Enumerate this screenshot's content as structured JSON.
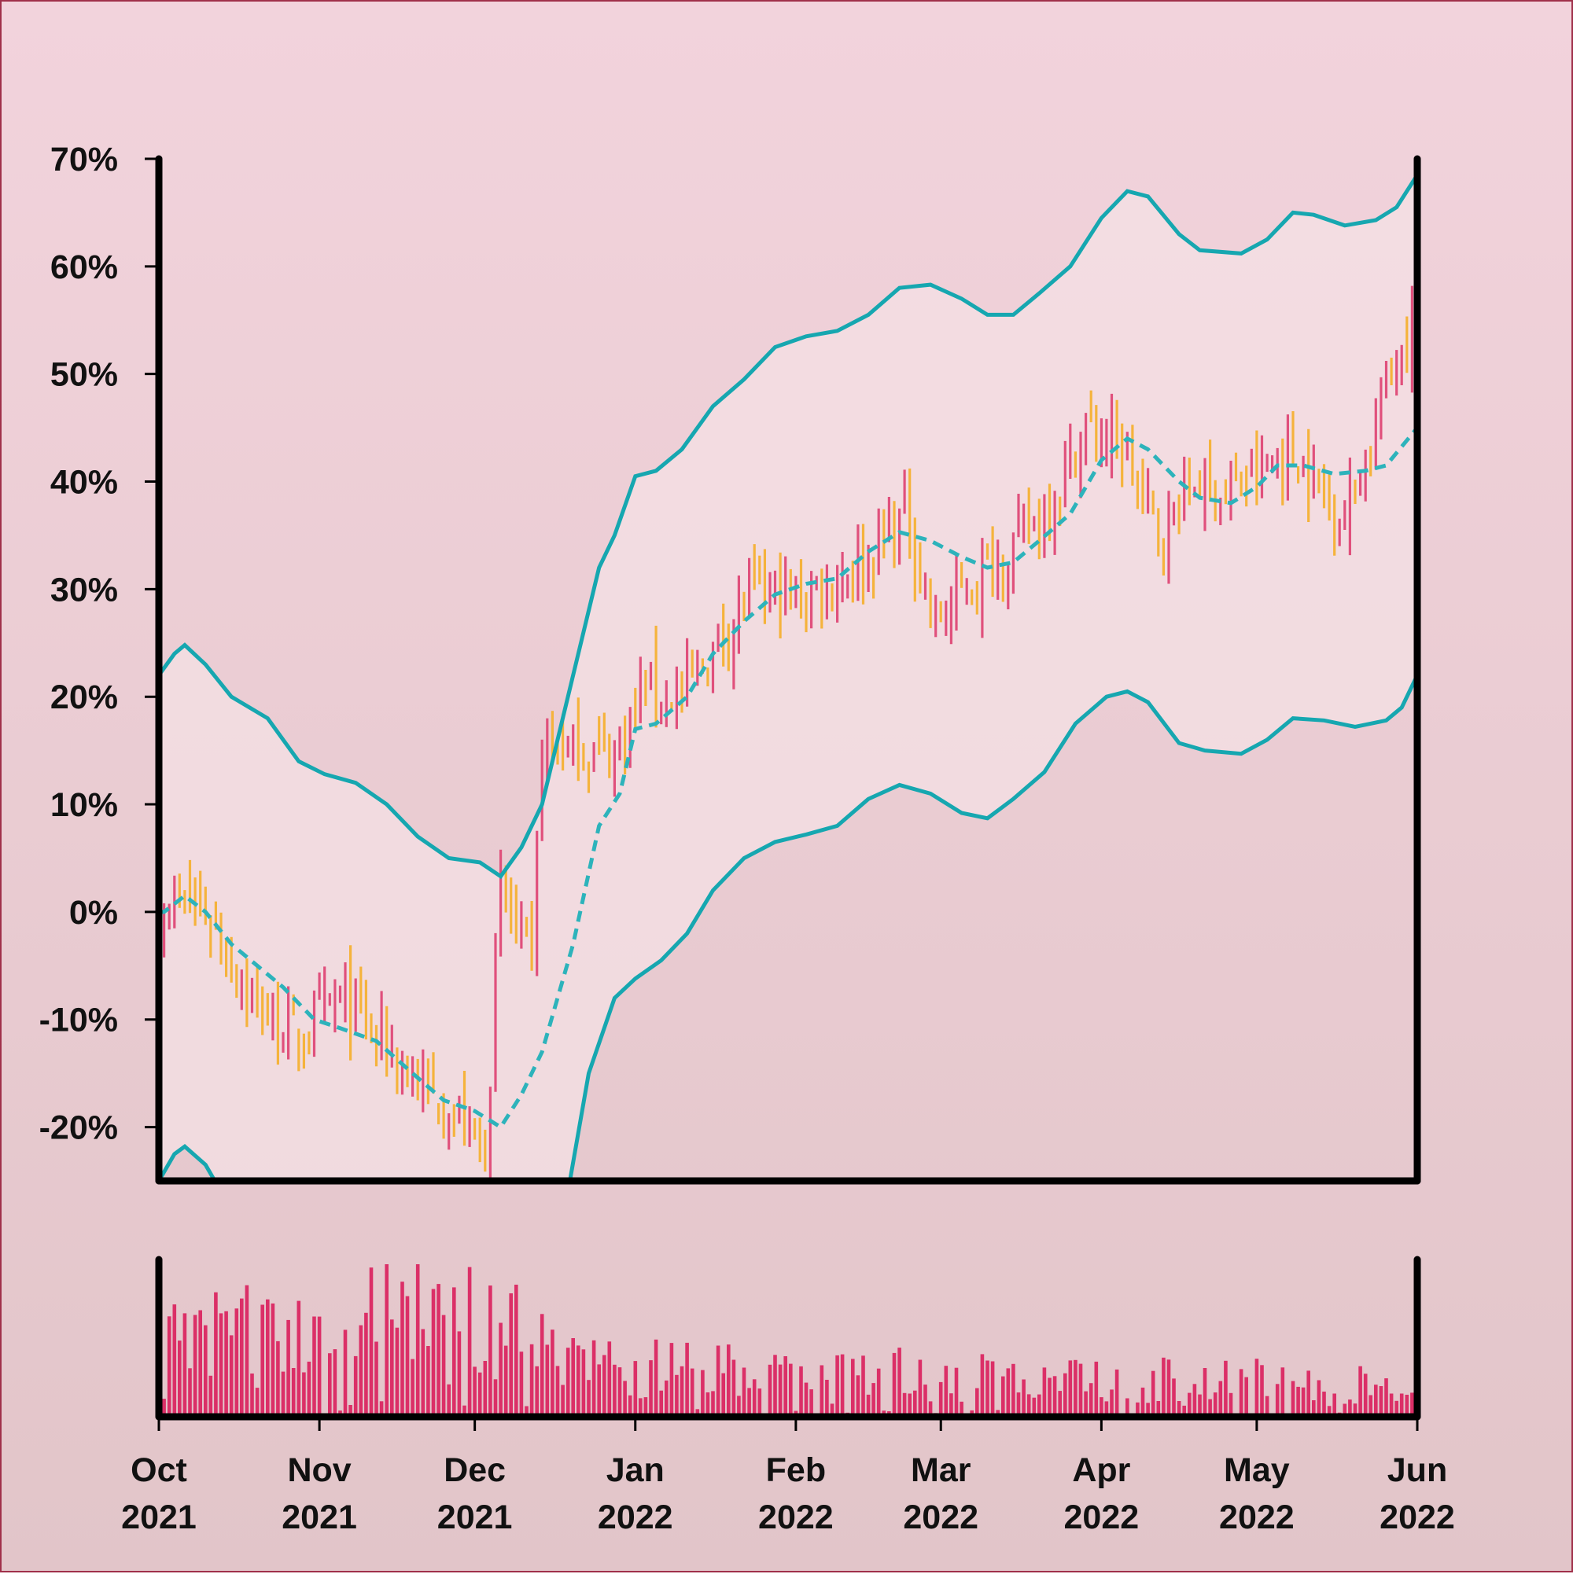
{
  "chart_data": {
    "type": "bar",
    "subtype": "ohlc-with-bands-and-volume",
    "title": "",
    "xlabel": "",
    "ylabel": "",
    "x_start": "2021-10-01",
    "x_end": "2022-06-01",
    "ylim": [
      -25,
      70
    ],
    "y_ticks": [
      -20,
      -10,
      0,
      10,
      20,
      30,
      40,
      50,
      60,
      70
    ],
    "y_tick_labels": [
      "-20%",
      "-10%",
      "0%",
      "10%",
      "20%",
      "30%",
      "40%",
      "50%",
      "60%",
      "70%"
    ],
    "x_ticks": [
      "2021-10-01",
      "2021-11-01",
      "2021-12-01",
      "2022-01-01",
      "2022-02-01",
      "2022-03-01",
      "2022-04-01",
      "2022-05-01",
      "2022-06-01"
    ],
    "x_tick_labels": [
      [
        "Oct",
        "2021"
      ],
      [
        "Nov",
        "2021"
      ],
      [
        "Dec",
        "2021"
      ],
      [
        "Jan",
        "2022"
      ],
      [
        "Feb",
        "2022"
      ],
      [
        "Mar",
        "2022"
      ],
      [
        "Apr",
        "2022"
      ],
      [
        "May",
        "2022"
      ],
      [
        "Jun",
        "2022"
      ]
    ],
    "colors": {
      "up": "#e0507c",
      "down": "#f5b33c",
      "band": "#16a7b0",
      "ma": "#2db3bb",
      "volume": "#db2f67",
      "band_fill": "#f4e0e4"
    },
    "price_close": [
      [
        "2021-10-02",
        1
      ],
      [
        "2021-10-10",
        0
      ],
      [
        "2021-10-20",
        -9
      ],
      [
        "2021-10-28",
        -12
      ],
      [
        "2021-11-05",
        -8
      ],
      [
        "2021-11-13",
        -12
      ],
      [
        "2021-11-20",
        -16
      ],
      [
        "2021-11-27",
        -19
      ],
      [
        "2021-12-03",
        -22
      ],
      [
        "2021-12-06",
        2
      ],
      [
        "2021-12-12",
        -5
      ],
      [
        "2021-12-14",
        16
      ],
      [
        "2021-12-20",
        15
      ],
      [
        "2021-12-28",
        15
      ],
      [
        "2022-01-03",
        21
      ],
      [
        "2022-01-10",
        20
      ],
      [
        "2022-01-17",
        25
      ],
      [
        "2022-01-24",
        30
      ],
      [
        "2022-02-01",
        29
      ],
      [
        "2022-02-08",
        31
      ],
      [
        "2022-02-15",
        33
      ],
      [
        "2022-02-22",
        37
      ],
      [
        "2022-02-28",
        27
      ],
      [
        "2022-03-08",
        31
      ],
      [
        "2022-03-15",
        34
      ],
      [
        "2022-03-22",
        38
      ],
      [
        "2022-03-29",
        45
      ],
      [
        "2022-04-05",
        43
      ],
      [
        "2022-04-12",
        35
      ],
      [
        "2022-04-19",
        40
      ],
      [
        "2022-04-26",
        39
      ],
      [
        "2022-05-03",
        41
      ],
      [
        "2022-05-08",
        43
      ],
      [
        "2022-05-12",
        40
      ],
      [
        "2022-05-18",
        37
      ],
      [
        "2022-05-23",
        44
      ],
      [
        "2022-05-28",
        52
      ],
      [
        "2022-06-01",
        56
      ]
    ],
    "moving_average": [
      [
        "2021-10-01",
        0
      ],
      [
        "2021-10-02",
        0
      ],
      [
        "2021-10-06",
        1.5
      ],
      [
        "2021-10-10",
        0
      ],
      [
        "2021-10-15",
        -3
      ],
      [
        "2021-10-20",
        -5
      ],
      [
        "2021-10-25",
        -7
      ],
      [
        "2021-10-31",
        -10
      ],
      [
        "2021-11-05",
        -10.8
      ],
      [
        "2021-11-12",
        -12
      ],
      [
        "2021-11-19",
        -15
      ],
      [
        "2021-11-25",
        -17.5
      ],
      [
        "2021-12-01",
        -18.5
      ],
      [
        "2021-12-06",
        -20
      ],
      [
        "2021-12-10",
        -17
      ],
      [
        "2021-12-14",
        -13
      ],
      [
        "2021-12-20",
        -3
      ],
      [
        "2021-12-25",
        8
      ],
      [
        "2021-12-29",
        11
      ],
      [
        "2022-01-01",
        17
      ],
      [
        "2022-01-05",
        17.5
      ],
      [
        "2022-01-11",
        20
      ],
      [
        "2022-01-16",
        24
      ],
      [
        "2022-01-22",
        27
      ],
      [
        "2022-01-28",
        29.5
      ],
      [
        "2022-02-03",
        30.5
      ],
      [
        "2022-02-09",
        31
      ],
      [
        "2022-02-15",
        33.5
      ],
      [
        "2022-02-21",
        35.3
      ],
      [
        "2022-02-27",
        34.5
      ],
      [
        "2022-03-05",
        33
      ],
      [
        "2022-03-10",
        32
      ],
      [
        "2022-03-15",
        32.5
      ],
      [
        "2022-03-20",
        34.5
      ],
      [
        "2022-03-26",
        37
      ],
      [
        "2022-04-01",
        42
      ],
      [
        "2022-04-06",
        44
      ],
      [
        "2022-04-10",
        43
      ],
      [
        "2022-04-16",
        40
      ],
      [
        "2022-04-20",
        38.5
      ],
      [
        "2022-04-26",
        38
      ],
      [
        "2022-05-01",
        39.5
      ],
      [
        "2022-05-05",
        41.5
      ],
      [
        "2022-05-10",
        41.5
      ],
      [
        "2022-05-16",
        40.7
      ],
      [
        "2022-05-22",
        41
      ],
      [
        "2022-05-26",
        41.5
      ],
      [
        "2022-06-01",
        45
      ]
    ],
    "upper_band": [
      [
        "2021-10-01",
        22
      ],
      [
        "2021-10-04",
        24
      ],
      [
        "2021-10-06",
        24.8
      ],
      [
        "2021-10-10",
        23
      ],
      [
        "2021-10-15",
        20
      ],
      [
        "2021-10-22",
        18
      ],
      [
        "2021-10-28",
        14
      ],
      [
        "2021-11-02",
        12.8
      ],
      [
        "2021-11-08",
        12
      ],
      [
        "2021-11-14",
        10
      ],
      [
        "2021-11-20",
        7
      ],
      [
        "2021-11-26",
        5
      ],
      [
        "2021-12-02",
        4.6
      ],
      [
        "2021-12-06",
        3.3
      ],
      [
        "2021-12-10",
        6
      ],
      [
        "2021-12-14",
        10
      ],
      [
        "2021-12-20",
        22
      ],
      [
        "2021-12-25",
        32
      ],
      [
        "2021-12-28",
        35
      ],
      [
        "2022-01-01",
        40.5
      ],
      [
        "2022-01-05",
        41
      ],
      [
        "2022-01-10",
        43
      ],
      [
        "2022-01-16",
        47
      ],
      [
        "2022-01-22",
        49.5
      ],
      [
        "2022-01-28",
        52.5
      ],
      [
        "2022-02-03",
        53.5
      ],
      [
        "2022-02-09",
        54
      ],
      [
        "2022-02-15",
        55.5
      ],
      [
        "2022-02-21",
        58
      ],
      [
        "2022-02-27",
        58.3
      ],
      [
        "2022-03-05",
        57
      ],
      [
        "2022-03-10",
        55.5
      ],
      [
        "2022-03-15",
        55.5
      ],
      [
        "2022-03-20",
        57.5
      ],
      [
        "2022-03-26",
        60
      ],
      [
        "2022-04-01",
        64.5
      ],
      [
        "2022-04-06",
        67
      ],
      [
        "2022-04-10",
        66.5
      ],
      [
        "2022-04-16",
        63
      ],
      [
        "2022-04-20",
        61.5
      ],
      [
        "2022-04-28",
        61.2
      ],
      [
        "2022-05-03",
        62.5
      ],
      [
        "2022-05-08",
        65
      ],
      [
        "2022-05-12",
        64.8
      ],
      [
        "2022-05-18",
        63.8
      ],
      [
        "2022-05-24",
        64.3
      ],
      [
        "2022-05-28",
        65.5
      ],
      [
        "2022-06-01",
        68.5
      ]
    ],
    "lower_band": [
      [
        "2021-10-01",
        -25
      ],
      [
        "2021-10-04",
        -22.5
      ],
      [
        "2021-10-06",
        -21.8
      ],
      [
        "2021-10-10",
        -23.5
      ],
      [
        "2021-10-13",
        -26
      ],
      [
        "2021-12-19",
        -26
      ],
      [
        "2021-12-23",
        -15
      ],
      [
        "2021-12-28",
        -8
      ],
      [
        "2022-01-01",
        -6.2
      ],
      [
        "2022-01-06",
        -4.5
      ],
      [
        "2022-01-11",
        -2
      ],
      [
        "2022-01-16",
        2
      ],
      [
        "2022-01-22",
        5
      ],
      [
        "2022-01-28",
        6.5
      ],
      [
        "2022-02-03",
        7.2
      ],
      [
        "2022-02-09",
        8
      ],
      [
        "2022-02-15",
        10.5
      ],
      [
        "2022-02-21",
        11.8
      ],
      [
        "2022-02-27",
        11
      ],
      [
        "2022-03-05",
        9.2
      ],
      [
        "2022-03-10",
        8.7
      ],
      [
        "2022-03-15",
        10.5
      ],
      [
        "2022-03-21",
        13
      ],
      [
        "2022-03-27",
        17.5
      ],
      [
        "2022-04-02",
        20
      ],
      [
        "2022-04-06",
        20.5
      ],
      [
        "2022-04-10",
        19.5
      ],
      [
        "2022-04-16",
        15.7
      ],
      [
        "2022-04-21",
        15
      ],
      [
        "2022-04-28",
        14.7
      ],
      [
        "2022-05-03",
        16
      ],
      [
        "2022-05-08",
        18
      ],
      [
        "2022-05-14",
        17.8
      ],
      [
        "2022-05-20",
        17.2
      ],
      [
        "2022-05-26",
        17.8
      ],
      [
        "2022-05-29",
        19
      ],
      [
        "2022-06-01",
        22
      ]
    ],
    "volume_level": [
      [
        "2021-10-01",
        0.45
      ],
      [
        "2021-10-15",
        0.55
      ],
      [
        "2021-11-01",
        0.5
      ],
      [
        "2021-11-15",
        0.7
      ],
      [
        "2021-12-01",
        0.75
      ],
      [
        "2021-12-08",
        0.6
      ],
      [
        "2021-12-20",
        0.35
      ],
      [
        "2022-01-10",
        0.3
      ],
      [
        "2022-02-01",
        0.25
      ],
      [
        "2022-03-01",
        0.28
      ],
      [
        "2022-04-01",
        0.25
      ],
      [
        "2022-05-01",
        0.23
      ],
      [
        "2022-06-01",
        0.18
      ]
    ]
  }
}
